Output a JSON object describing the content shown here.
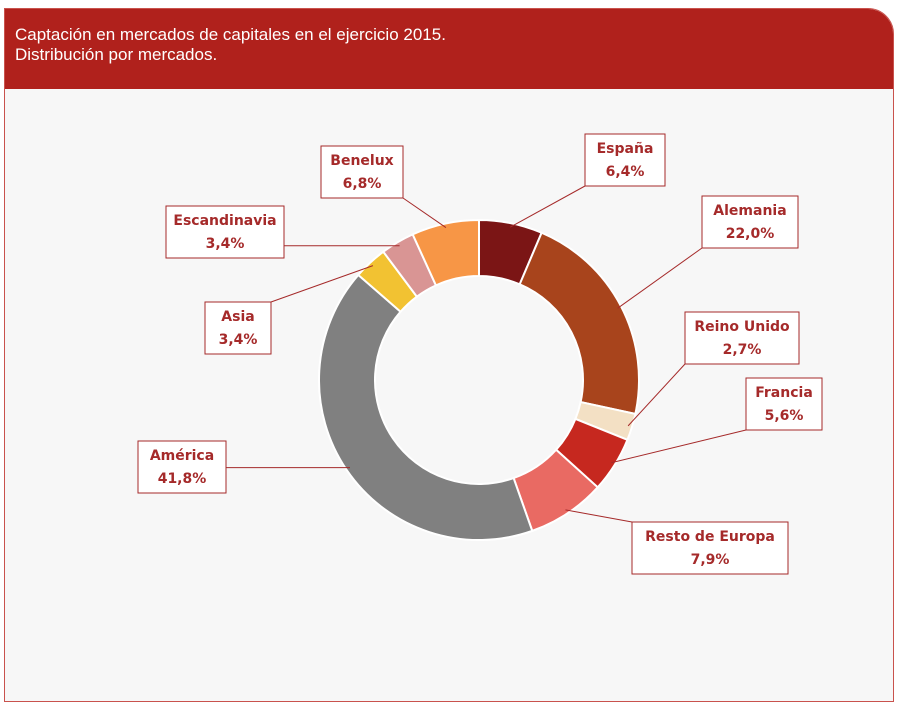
{
  "chart_data": {
    "type": "donut",
    "title": [
      "Captación en mercados de capitales en el ejercicio 2015.",
      "Distribución por  mercados."
    ],
    "categories": [
      "España",
      "Alemania",
      "Reino Unido",
      "Francia",
      "Resto de Europa",
      "América",
      "Asia",
      "Escandinavia",
      "Benelux"
    ],
    "values": [
      6.4,
      22.0,
      2.7,
      5.6,
      7.9,
      41.8,
      3.4,
      3.4,
      6.8
    ],
    "value_labels": [
      "6,4%",
      "22,0%",
      "2,7%",
      "5,6%",
      "7,9%",
      "41,8%",
      "3,4%",
      "3,4%",
      "6,8%"
    ],
    "colors": [
      "#7b1515",
      "#a8441c",
      "#f3e0c4",
      "#c6281f",
      "#e96a63",
      "#808080",
      "#f2c232",
      "#d99594",
      "#f79646"
    ]
  }
}
